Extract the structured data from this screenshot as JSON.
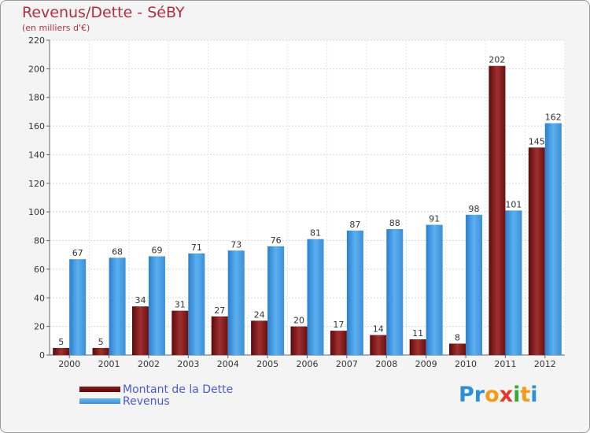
{
  "chart_data": {
    "type": "bar",
    "title": "Revenus/Dette - SéBY",
    "subtitle": "(en milliers d'€)",
    "categories": [
      "2000",
      "2001",
      "2002",
      "2003",
      "2004",
      "2005",
      "2006",
      "2007",
      "2008",
      "2009",
      "2010",
      "2011",
      "2012"
    ],
    "series": [
      {
        "name": "Montant de la Dette",
        "color": "#8b1a1a",
        "values": [
          5,
          5,
          34,
          31,
          27,
          24,
          20,
          17,
          14,
          11,
          8,
          202,
          145
        ]
      },
      {
        "name": "Revenus",
        "color": "#4aa3e8",
        "values": [
          67,
          68,
          69,
          71,
          73,
          76,
          81,
          87,
          88,
          91,
          98,
          101,
          162
        ]
      }
    ],
    "ylim": [
      0,
      220
    ],
    "yticks": [
      0,
      20,
      40,
      60,
      80,
      100,
      120,
      140,
      160,
      180,
      200,
      220
    ],
    "grid": true,
    "legend": "bottom-left"
  },
  "brand": {
    "letters": [
      {
        "char": "P",
        "color": "#2e8fd8"
      },
      {
        "char": "r",
        "color": "#2e8fd8"
      },
      {
        "char": "o",
        "color": "#f29a1a"
      },
      {
        "char": "x",
        "color": "#e03a2a"
      },
      {
        "char": "i",
        "color": "#3aa83a"
      },
      {
        "char": "t",
        "color": "#f29a1a"
      },
      {
        "char": "i",
        "color": "#2e8fd8"
      }
    ]
  }
}
